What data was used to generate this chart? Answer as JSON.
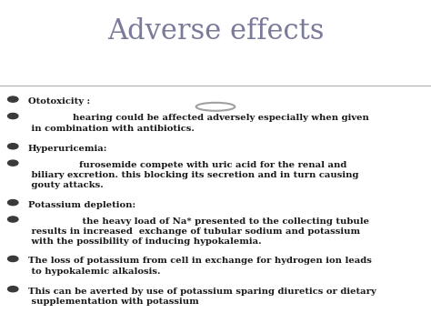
{
  "title": "Adverse effects",
  "title_color": "#7a7a9a",
  "title_fontsize": 22,
  "bg_top": "#ffffff",
  "bg_bottom": "#a8b0b8",
  "circle_color": "#ffffff",
  "circle_edge": "#a0a0a0",
  "bullet_color": "#2c2c2c",
  "text_color": "#1a1a1a",
  "bullet_items": [
    "Ototoxicity :",
    "              hearing could be affected adversely especially when given\n in combination with antibiotics.",
    "Hyperuricemia:",
    "                furosemide compete with uric acid for the renal and\n biliary excretion. this blocking its secretion and in turn causing\n gouty attacks.",
    "Potassium depletion:",
    "                 the heavy load of Na* presented to the collecting tubule\n results in increased  exchange of tubular sodium and potassium\n with the possibility of inducing hypokalemia.",
    "The loss of potassium from cell in exchange for hydrogen ion leads\n to hypokalemic alkalosis.",
    "This can be averted by use of potassium sparing diuretics or dietary\n supplementation with potassium"
  ],
  "figsize": [
    4.74,
    3.55
  ],
  "dpi": 100
}
